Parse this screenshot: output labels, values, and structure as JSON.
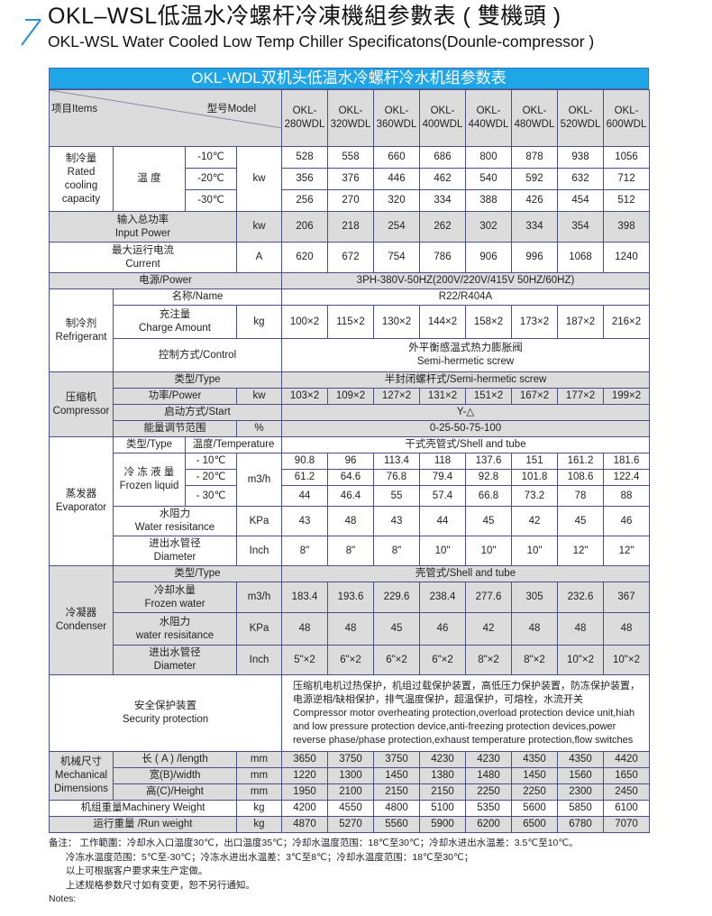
{
  "header": {
    "title_zh": "OKL–WSL低温水冷螺杆冷凍機組参數表 ( 雙機頭 )",
    "title_en": "OKL-WSL Water Cooled Low Temp Chiller Specificatons(Dounle-compressor )",
    "icon": "arrow-up-right-icon",
    "accent_color": "#1fa6e8"
  },
  "table": {
    "banner": "OKL-WDL双机头低温水冷螺杆冷水机组参数表",
    "items_label": "项目Items",
    "model_label": "型号Model",
    "model_prefix": "OKL-",
    "models": [
      "280WDL",
      "320WDL",
      "360WDL",
      "400WDL",
      "440WDL",
      "480WDL",
      "520WDL",
      "600WDL"
    ],
    "cooling": {
      "label": "制冷量\nRated\ncooling\ncapacity",
      "sub": "温 度",
      "unit": "kw",
      "rows": [
        {
          "temp": "-10℃",
          "values": [
            "528",
            "558",
            "660",
            "686",
            "800",
            "878",
            "938",
            "1056"
          ]
        },
        {
          "temp": "-20℃",
          "values": [
            "356",
            "376",
            "446",
            "462",
            "540",
            "592",
            "632",
            "712"
          ]
        },
        {
          "temp": "-30℃",
          "values": [
            "256",
            "270",
            "320",
            "334",
            "388",
            "426",
            "454",
            "512"
          ]
        }
      ]
    },
    "input_power": {
      "label": "输入总功率\nInput Power",
      "unit": "kw",
      "values": [
        "206",
        "218",
        "254",
        "262",
        "302",
        "334",
        "354",
        "398"
      ]
    },
    "current": {
      "label": "最大运行电流\nCurrent",
      "unit": "A",
      "values": [
        "620",
        "672",
        "754",
        "786",
        "906",
        "996",
        "1068",
        "1240"
      ]
    },
    "power": {
      "label": "电源/Power",
      "value": "3PH-380V-50HZ(200V/220V/415V  50HZ/60HZ)"
    },
    "refrigerant": {
      "label": "制冷剂\nRefrigerant",
      "name_label": "名称/Name",
      "name_value": "R22/R404A",
      "charge_label": "充注量\nCharge Amount",
      "charge_unit": "kg",
      "charge_values": [
        "100×2",
        "115×2",
        "130×2",
        "144×2",
        "158×2",
        "173×2",
        "187×2",
        "216×2"
      ],
      "control_label": "控制方式/Control",
      "control_value": "外平衡感温式热力膨胀阀\nSemi-hermetic screw"
    },
    "compressor": {
      "label": "压缩机\nCompressor",
      "type_label": "类型/Type",
      "type_value": "半封闭螺杆式/Semi-hermetic screw",
      "power_label": "功率/Power",
      "power_unit": "kw",
      "power_values": [
        "103×2",
        "109×2",
        "127×2",
        "131×2",
        "151×2",
        "167×2",
        "177×2",
        "199×2"
      ],
      "start_label": "启动方式/Start",
      "start_value": "Y-△",
      "energy_label": "能量调节范围",
      "energy_unit": "%",
      "energy_value": "0-25-50-75-100"
    },
    "evaporator": {
      "label": "蒸发器\nEvaporator",
      "type_label": "类型/Type",
      "temp_label": "温度/Temperature",
      "type_value": "干式壳管式/Shell and tube",
      "frozen_label": "冷 冻 液 量\nFrozen liquid",
      "frozen_unit": "m3/h",
      "frozen_rows": [
        {
          "temp": "- 10℃",
          "values": [
            "90.8",
            "96",
            "113.4",
            "118",
            "137.6",
            "151",
            "161.2",
            "181.6"
          ]
        },
        {
          "temp": "- 20℃",
          "values": [
            "61.2",
            "64.6",
            "76.8",
            "79.4",
            "92.8",
            "101.8",
            "108.6",
            "122.4"
          ]
        },
        {
          "temp": "- 30℃",
          "values": [
            "44",
            "46.4",
            "55",
            "57.4",
            "66.8",
            "73.2",
            "78",
            "88"
          ]
        }
      ],
      "resist_label": "水阻力\nWater resisitance",
      "resist_unit": "KPa",
      "resist_values": [
        "43",
        "48",
        "43",
        "44",
        "45",
        "42",
        "45",
        "46"
      ],
      "diam_label": "进出水管径\nDiameter",
      "diam_unit": "Inch",
      "diam_values": [
        "8\"",
        "8\"",
        "8\"",
        "10\"",
        "10\"",
        "10\"",
        "12\"",
        "12\""
      ]
    },
    "condenser": {
      "label": "冷凝器\nCondenser",
      "type_label": "类型/Type",
      "type_value": "壳管式/Shell and tube",
      "water_label": "冷却水量\nFrozen water",
      "water_unit": "m3/h",
      "water_values": [
        "183.4",
        "193.6",
        "229.6",
        "238.4",
        "277.6",
        "305",
        "232.6",
        "367"
      ],
      "resist_label": "水阻力\nwater resisitance",
      "resist_unit": "KPa",
      "resist_values": [
        "48",
        "48",
        "45",
        "46",
        "42",
        "48",
        "48",
        "48"
      ],
      "diam_label": "进出水管径\nDiameter",
      "diam_unit": "Inch",
      "diam_values": [
        "5\"×2",
        "6\"×2",
        "6\"×2",
        "6\"×2",
        "8\"×2",
        "8\"×2",
        "10\"×2",
        "10\"×2"
      ]
    },
    "security": {
      "label": "安全保护装置\nSecurity protection",
      "value": "压缩机电机过热保护，机组过载保护装置，高低压力保护装置，防冻保护装置，电源逆相/缺相保护，排气温度保护，超温保护，可熔栓，水流开关\nCompressor motor overheating protection,overload protection device unit,hiah and low pressure protection device,anti-freezing protection devices,power reverse phase/phase protection,exhaust temperature protection,flow switches"
    },
    "mechanical": {
      "label": "机械尺寸\nMechanical\nDimensions",
      "unit": "mm",
      "rows": [
        {
          "label": "长 ( A ) /length",
          "values": [
            "3650",
            "3750",
            "3750",
            "4230",
            "4230",
            "4350",
            "4350",
            "4420"
          ]
        },
        {
          "label": "宽(B)/width",
          "values": [
            "1220",
            "1300",
            "1450",
            "1380",
            "1480",
            "1450",
            "1560",
            "1650"
          ]
        },
        {
          "label": "高(C)/Height",
          "values": [
            "1950",
            "2100",
            "2150",
            "2150",
            "2250",
            "2250",
            "2300",
            "2450"
          ]
        }
      ]
    },
    "machinery_weight": {
      "label": "机组重量Machinery Weight",
      "unit": "kg",
      "values": [
        "4200",
        "4550",
        "4800",
        "5100",
        "5350",
        "5600",
        "5850",
        "6100"
      ]
    },
    "run_weight": {
      "label": "运行重量 /Run weight",
      "unit": "kg",
      "values": [
        "4870",
        "5270",
        "5560",
        "5900",
        "6200",
        "6500",
        "6780",
        "7070"
      ]
    }
  },
  "notes": {
    "lines": [
      "备注：  工作範圍：冷却水入口温度30℃，出口温度35℃；冷却水温度范围：18℃至30℃；冷却水进出水温差：3.5℃至10℃。",
      "冷冻水温度范围：5℃至-30℃；冷冻水进出水温差：3℃至8℃；冷却水温度范围：18℃至30℃；",
      "以上可根据客户要求来生产定做。",
      "上述规格参数尺寸如有变更，恕不另行通知。"
    ],
    "footer": "Notes:"
  }
}
